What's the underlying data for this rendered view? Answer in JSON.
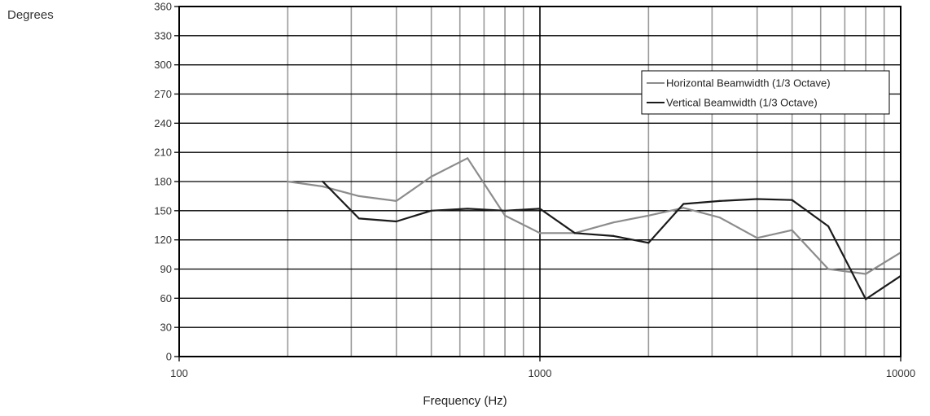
{
  "chart_data": {
    "type": "line",
    "title": "",
    "ylabel": "Degrees",
    "xlabel": "Frequency (Hz)",
    "x_scale": "log",
    "xlim": [
      100,
      10000
    ],
    "ylim": [
      0,
      360
    ],
    "x_ticks": [
      100,
      1000,
      10000
    ],
    "x_tick_labels": [
      "100",
      "1000",
      "10000"
    ],
    "y_ticks": [
      0,
      30,
      60,
      90,
      120,
      150,
      180,
      210,
      240,
      270,
      300,
      330,
      360
    ],
    "grid": true,
    "legend_position": "top-right",
    "series": [
      {
        "name": "Horizontal Beamwidth (1/3 Octave)",
        "color": "#8c8c8c",
        "x": [
          200,
          250,
          315,
          400,
          500,
          630,
          800,
          1000,
          1250,
          1600,
          2000,
          2500,
          3150,
          4000,
          5000,
          6300,
          8000,
          10000
        ],
        "y": [
          180,
          175,
          165,
          160,
          185,
          204,
          145,
          127,
          127,
          138,
          145,
          153,
          143,
          122,
          130,
          90,
          85,
          107
        ]
      },
      {
        "name": "Vertical Beamwidth (1/3 Octave)",
        "color": "#1a1a1a",
        "x": [
          250,
          315,
          400,
          500,
          630,
          800,
          1000,
          1250,
          1600,
          2000,
          2500,
          3150,
          4000,
          5000,
          6300,
          8000,
          10000
        ],
        "y": [
          180,
          142,
          139,
          150,
          152,
          150,
          152,
          127,
          124,
          117,
          157,
          160,
          162,
          161,
          134,
          59,
          83
        ]
      }
    ]
  }
}
